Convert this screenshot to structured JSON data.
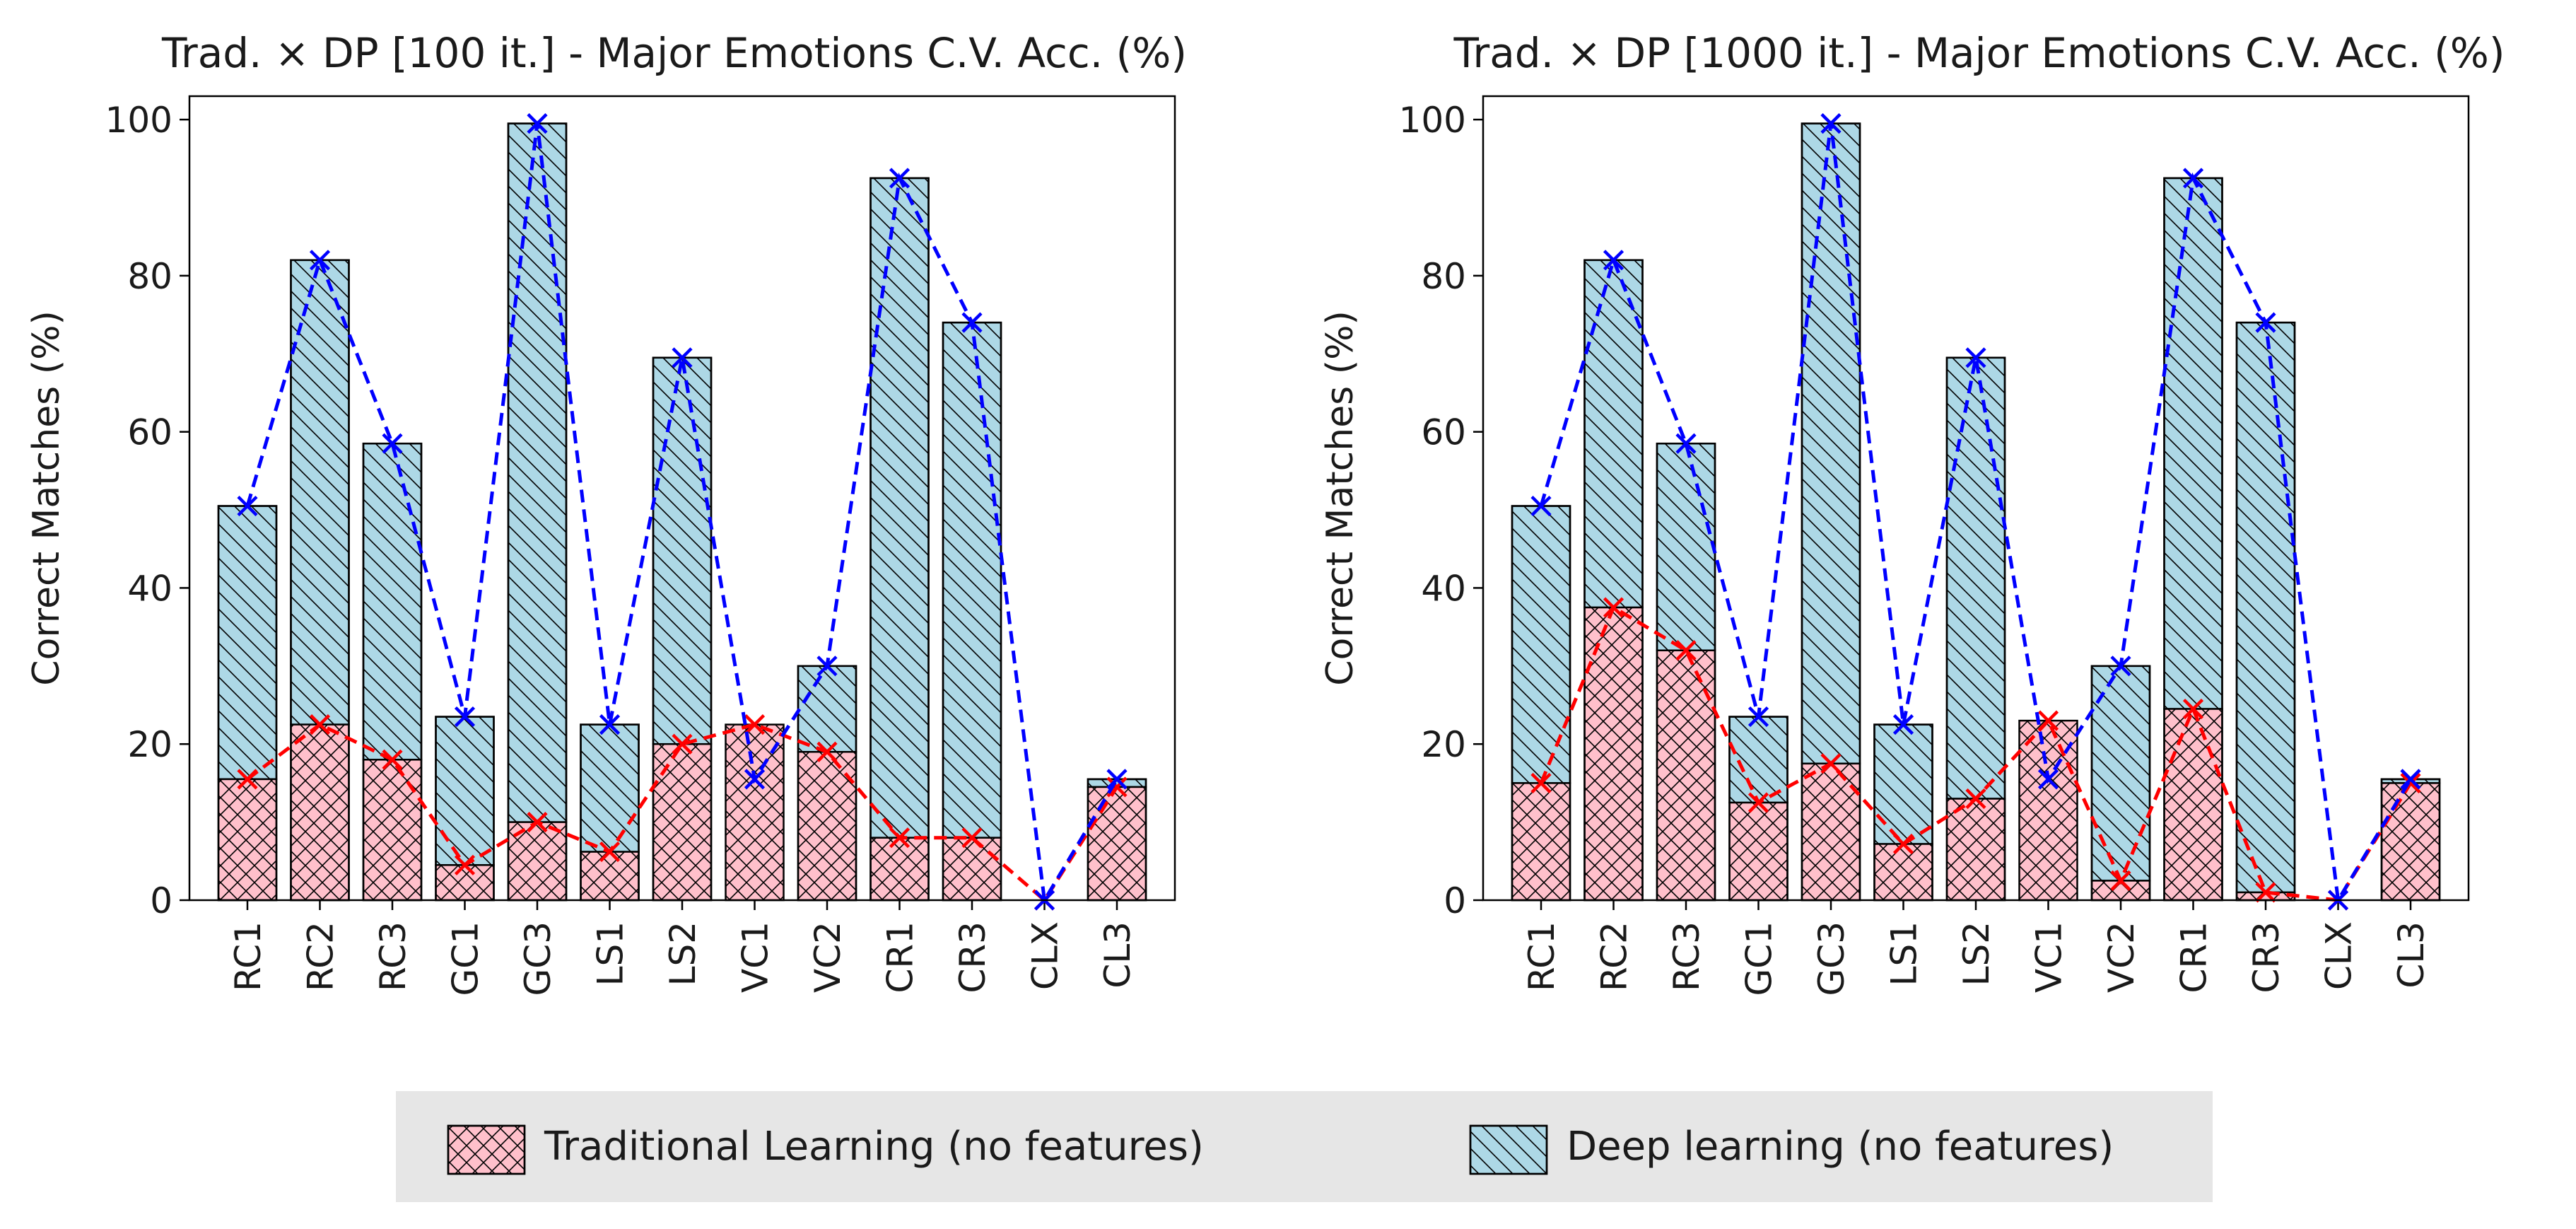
{
  "legend": {
    "placement": "bottom-center",
    "items": [
      {
        "label": "Traditional Learning (no features)",
        "color": "#ffc0cb",
        "hatch": "cross"
      },
      {
        "label": "Deep learning (no features)",
        "color": "#add8e6",
        "hatch": "diagonal"
      }
    ]
  },
  "colors": {
    "traditional_fill": "#ffc0cb",
    "deep_fill": "#add8e6",
    "traditional_line": "#ff0000",
    "deep_line": "#0000ff",
    "legend_background": "#e6e6e6"
  },
  "chart_data": [
    {
      "type": "bar",
      "title": "Trad. × DP [100 it.] - Major Emotions C.V. Acc. (%)",
      "xlabel": "",
      "ylabel": "Correct Matches (%)",
      "ylim": [
        0,
        103
      ],
      "yticks": [
        0,
        20,
        40,
        60,
        80,
        100
      ],
      "grid": false,
      "categories": [
        "RC1",
        "RC2",
        "RC3",
        "GC1",
        "GC3",
        "LS1",
        "LS2",
        "VC1",
        "VC2",
        "CR1",
        "CR3",
        "CLX",
        "CL3"
      ],
      "series": [
        {
          "name": "Traditional Learning (no features)",
          "values": [
            15.5,
            22.5,
            18,
            4.5,
            10,
            6.2,
            20,
            22.5,
            19,
            8,
            8,
            0,
            14.5
          ],
          "style": "line-markers"
        },
        {
          "name": "Deep learning (no features)",
          "values": [
            50.5,
            82,
            58.5,
            23.5,
            99.5,
            22.5,
            69.5,
            15.5,
            30,
            92.5,
            74,
            0,
            15.5
          ],
          "style": "line-markers"
        }
      ]
    },
    {
      "type": "bar",
      "title": "Trad. × DP [1000 it.] - Major Emotions C.V. Acc. (%)",
      "xlabel": "",
      "ylabel": "Correct Matches (%)",
      "ylim": [
        0,
        103
      ],
      "yticks": [
        0,
        20,
        40,
        60,
        80,
        100
      ],
      "grid": false,
      "categories": [
        "RC1",
        "RC2",
        "RC3",
        "GC1",
        "GC3",
        "LS1",
        "LS2",
        "VC1",
        "VC2",
        "CR1",
        "CR3",
        "CLX",
        "CL3"
      ],
      "series": [
        {
          "name": "Traditional Learning (no features)",
          "values": [
            15,
            37.5,
            32,
            12.5,
            17.5,
            7.2,
            13,
            23,
            2.5,
            24.5,
            1,
            0,
            15
          ],
          "style": "line-markers"
        },
        {
          "name": "Deep learning (no features)",
          "values": [
            50.5,
            82,
            58.5,
            23.5,
            99.5,
            22.5,
            69.5,
            15.5,
            30,
            92.5,
            74,
            0,
            15.5
          ],
          "style": "line-markers"
        }
      ]
    }
  ]
}
